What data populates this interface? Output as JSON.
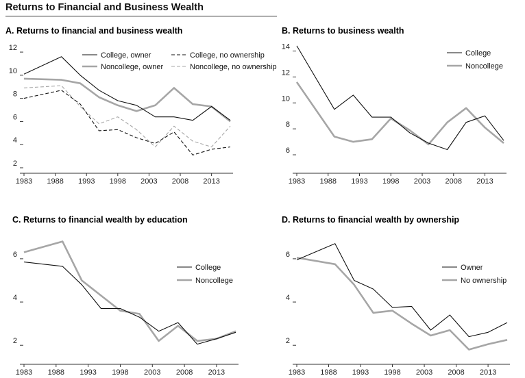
{
  "figure_title": "Returns to Financial and Business Wealth",
  "chart_data": [
    {
      "type": "line",
      "title": "A. Returns to financial and business wealth",
      "x": [
        1983,
        1989,
        1992,
        1995,
        1998,
        2001,
        2004,
        2007,
        2010,
        2013,
        2016
      ],
      "xticks": [
        1983,
        1988,
        1993,
        1998,
        2003,
        2008,
        2013
      ],
      "yticks": [
        2,
        4,
        6,
        8,
        10,
        12
      ],
      "ylim": [
        2,
        12.3
      ],
      "grid": false,
      "legend": "top-right",
      "series": [
        {
          "name": "College, owner",
          "color": "#111111",
          "width": 1.1,
          "dash": "",
          "values": [
            10.1,
            11.6,
            10.0,
            8.7,
            7.8,
            7.4,
            6.4,
            6.4,
            6.1,
            7.3,
            6.1
          ]
        },
        {
          "name": "College, no ownership",
          "color": "#111111",
          "width": 1.1,
          "dash": "5,3",
          "values": [
            8.0,
            8.7,
            7.5,
            5.2,
            5.3,
            4.6,
            4.1,
            5.1,
            3.1,
            3.6,
            3.8
          ]
        },
        {
          "name": "Noncollege, owner",
          "color": "#a6a6a6",
          "width": 2.6,
          "dash": "",
          "values": [
            9.7,
            9.6,
            9.3,
            8.1,
            7.4,
            6.9,
            7.4,
            8.9,
            7.5,
            7.3,
            6.0
          ]
        },
        {
          "name": "Noncollege, no ownership",
          "color": "#a6a6a6",
          "width": 1.1,
          "dash": "5,3",
          "values": [
            8.9,
            9.1,
            7.3,
            5.8,
            6.4,
            5.3,
            3.8,
            5.6,
            4.3,
            3.8,
            5.6
          ]
        }
      ]
    },
    {
      "type": "line",
      "title": "B. Returns to business wealth",
      "x": [
        1983,
        1989,
        1992,
        1995,
        1998,
        2001,
        2004,
        2007,
        2010,
        2013,
        2016
      ],
      "xticks": [
        1983,
        1988,
        1993,
        1998,
        2003,
        2008,
        2013
      ],
      "yticks": [
        6,
        8,
        10,
        12,
        14
      ],
      "ylim": [
        5,
        14.5
      ],
      "grid": false,
      "legend": "top-right",
      "series": [
        {
          "name": "College",
          "color": "#111111",
          "width": 1.1,
          "dash": "",
          "values": [
            14.4,
            9.5,
            10.6,
            8.9,
            8.9,
            7.7,
            6.9,
            6.4,
            8.5,
            9.0,
            7.1
          ]
        },
        {
          "name": "Noncollege",
          "color": "#a6a6a6",
          "width": 2.6,
          "dash": "",
          "values": [
            11.6,
            7.4,
            7.0,
            7.2,
            8.8,
            7.9,
            6.8,
            8.5,
            9.6,
            8.1,
            6.9
          ]
        }
      ]
    },
    {
      "type": "line",
      "title": "C. Returns to financial wealth by education",
      "x": [
        1983,
        1989,
        1992,
        1995,
        1998,
        2001,
        2004,
        2007,
        2010,
        2013,
        2016
      ],
      "xticks": [
        1983,
        1988,
        1993,
        1998,
        2003,
        2008,
        2013
      ],
      "yticks": [
        2,
        4,
        6
      ],
      "ylim": [
        1.5,
        7.2
      ],
      "grid": false,
      "legend": "center-right",
      "series": [
        {
          "name": "College",
          "color": "#111111",
          "width": 1.1,
          "dash": "",
          "values": [
            5.85,
            5.65,
            4.8,
            3.7,
            3.7,
            3.3,
            2.65,
            3.05,
            2.05,
            2.3,
            2.6
          ]
        },
        {
          "name": "Noncollege",
          "color": "#a6a6a6",
          "width": 2.6,
          "dash": "",
          "values": [
            6.3,
            6.8,
            5.0,
            4.3,
            3.6,
            3.45,
            2.2,
            2.9,
            2.2,
            2.3,
            2.65
          ]
        }
      ]
    },
    {
      "type": "line",
      "title": "D. Returns to financial wealth by ownership",
      "x": [
        1983,
        1989,
        1992,
        1995,
        1998,
        2001,
        2004,
        2007,
        2010,
        2013,
        2016
      ],
      "xticks": [
        1983,
        1988,
        1993,
        1998,
        2003,
        2008,
        2013
      ],
      "yticks": [
        2,
        4,
        6
      ],
      "ylim": [
        1.5,
        7.2
      ],
      "grid": false,
      "legend": "center-right",
      "series": [
        {
          "name": "Owner",
          "color": "#111111",
          "width": 1.1,
          "dash": "",
          "values": [
            5.95,
            6.7,
            5.0,
            4.6,
            3.75,
            3.8,
            2.7,
            3.4,
            2.4,
            2.6,
            3.05
          ]
        },
        {
          "name": "No ownership",
          "color": "#a6a6a6",
          "width": 2.6,
          "dash": "",
          "values": [
            6.05,
            5.75,
            4.8,
            3.5,
            3.6,
            3.0,
            2.45,
            2.7,
            1.8,
            2.05,
            2.25
          ]
        }
      ]
    }
  ]
}
